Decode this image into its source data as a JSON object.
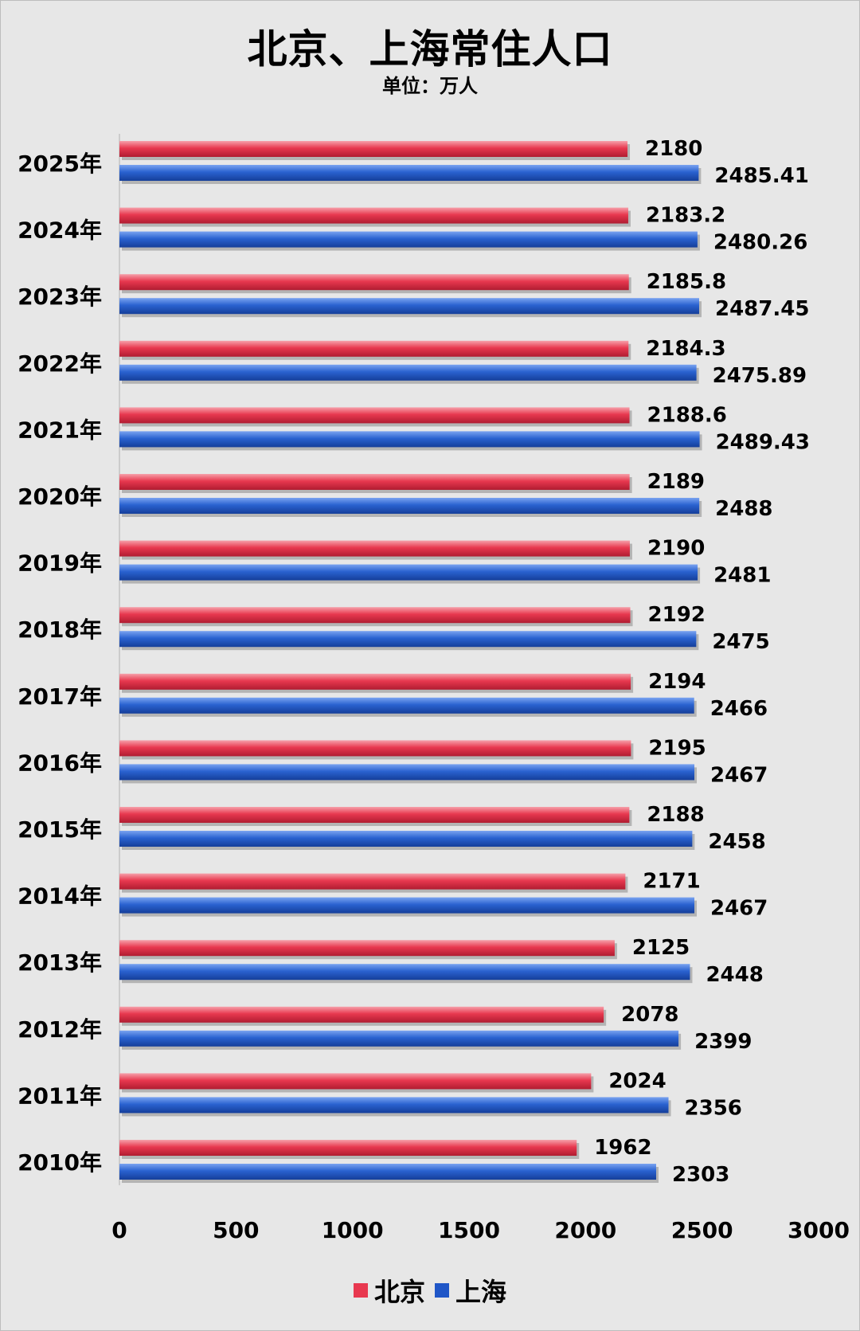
{
  "title": "北京、上海常住人口",
  "subtitle": "单位：万人",
  "chart_data": {
    "type": "bar",
    "orientation": "horizontal",
    "categories": [
      "2025年",
      "2024年",
      "2023年",
      "2022年",
      "2021年",
      "2020年",
      "2019年",
      "2018年",
      "2017年",
      "2016年",
      "2015年",
      "2014年",
      "2013年",
      "2012年",
      "2011年",
      "2010年"
    ],
    "series": [
      {
        "name": "北京",
        "color": "#e8384f",
        "values": [
          2180,
          2183.2,
          2185.8,
          2184.3,
          2188.6,
          2189,
          2190,
          2192,
          2194,
          2195,
          2188,
          2171,
          2125,
          2078,
          2024,
          1962
        ]
      },
      {
        "name": "上海",
        "color": "#1f56c7",
        "values": [
          2485.41,
          2480.26,
          2487.45,
          2475.89,
          2489.43,
          2488,
          2481,
          2475,
          2466,
          2467,
          2458,
          2467,
          2448,
          2399,
          2356,
          2303
        ]
      }
    ],
    "xlim": [
      0,
      3000
    ],
    "xticks": [
      "0",
      "500",
      "1000",
      "1500",
      "2000",
      "2500",
      "3000"
    ],
    "grid": false,
    "legend_position": "bottom-center"
  }
}
